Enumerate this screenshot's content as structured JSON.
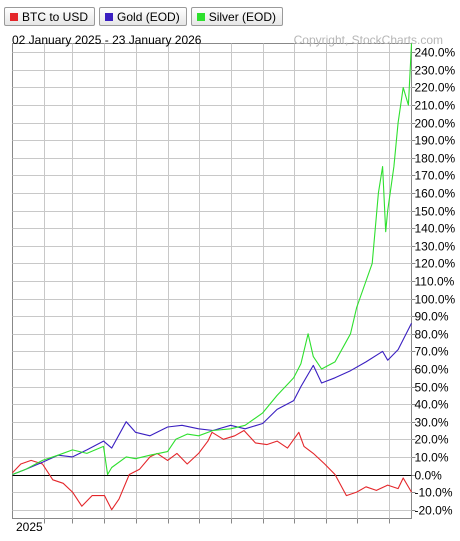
{
  "legend": [
    {
      "label": "BTC to USD",
      "color": "#e4262a"
    },
    {
      "label": "Gold (EOD)",
      "color": "#3a1fc1"
    },
    {
      "label": "Silver (EOD)",
      "color": "#2ee02e"
    }
  ],
  "header": {
    "date_range": "02 January 2025 - 23 January 2026",
    "copyright": "Copyright, StockCharts.com"
  },
  "chart_data": {
    "type": "line",
    "title": "",
    "xlabel": "",
    "ylabel": "",
    "x_start_label": "2025",
    "x_start": "2025-01-02",
    "x_end": "2026-01-23",
    "ylim": [
      -25,
      245
    ],
    "y_ticks": [
      -20,
      -10,
      0,
      10,
      20,
      30,
      40,
      50,
      60,
      70,
      80,
      90,
      100,
      110,
      120,
      130,
      140,
      150,
      160,
      170,
      180,
      190,
      200,
      210,
      220,
      230,
      240
    ],
    "y_tick_suffix": "%",
    "grid": true,
    "zero_line": true,
    "series": [
      {
        "name": "BTC to USD",
        "color": "#e4262a",
        "x": [
          "2025-01-02",
          "2025-01-10",
          "2025-01-20",
          "2025-01-31",
          "2025-02-10",
          "2025-02-20",
          "2025-03-01",
          "2025-03-10",
          "2025-03-20",
          "2025-04-01",
          "2025-04-08",
          "2025-04-15",
          "2025-04-25",
          "2025-05-05",
          "2025-05-15",
          "2025-05-22",
          "2025-06-01",
          "2025-06-10",
          "2025-06-20",
          "2025-07-01",
          "2025-07-10",
          "2025-07-14",
          "2025-07-25",
          "2025-08-05",
          "2025-08-14",
          "2025-08-25",
          "2025-09-05",
          "2025-09-15",
          "2025-09-25",
          "2025-10-06",
          "2025-10-11",
          "2025-10-20",
          "2025-10-31",
          "2025-11-10",
          "2025-11-21",
          "2025-12-01",
          "2025-12-10",
          "2025-12-20",
          "2025-12-31",
          "2026-01-10",
          "2026-01-15",
          "2026-01-23"
        ],
        "values": [
          1,
          6,
          8,
          6,
          -3,
          -5,
          -10,
          -18,
          -12,
          -12,
          -20,
          -14,
          0,
          3,
          10,
          12,
          8,
          12,
          6,
          12,
          19,
          24,
          20,
          22,
          25,
          18,
          17,
          19,
          15,
          24,
          16,
          12,
          6,
          0,
          -12,
          -10,
          -7,
          -9,
          -6,
          -8,
          -2,
          -10
        ]
      },
      {
        "name": "Gold (EOD)",
        "color": "#3a1fc1",
        "x": [
          "2025-01-02",
          "2025-01-15",
          "2025-01-31",
          "2025-02-15",
          "2025-03-01",
          "2025-03-15",
          "2025-03-31",
          "2025-04-08",
          "2025-04-22",
          "2025-05-01",
          "2025-05-15",
          "2025-06-01",
          "2025-06-15",
          "2025-07-01",
          "2025-07-15",
          "2025-08-01",
          "2025-08-15",
          "2025-09-01",
          "2025-09-15",
          "2025-10-01",
          "2025-10-08",
          "2025-10-20",
          "2025-10-28",
          "2025-11-10",
          "2025-11-25",
          "2025-12-10",
          "2025-12-26",
          "2025-12-31",
          "2026-01-10",
          "2026-01-23"
        ],
        "values": [
          0,
          3,
          7,
          11,
          10,
          14,
          19,
          15,
          30,
          24,
          22,
          27,
          28,
          26,
          25,
          28,
          26,
          29,
          37,
          42,
          50,
          62,
          52,
          55,
          59,
          64,
          70,
          65,
          71,
          86
        ]
      },
      {
        "name": "Silver (EOD)",
        "color": "#2ee02e",
        "x": [
          "2025-01-02",
          "2025-01-15",
          "2025-01-31",
          "2025-02-15",
          "2025-03-01",
          "2025-03-15",
          "2025-03-31",
          "2025-04-04",
          "2025-04-08",
          "2025-04-22",
          "2025-05-01",
          "2025-05-15",
          "2025-06-01",
          "2025-06-09",
          "2025-06-20",
          "2025-07-01",
          "2025-07-15",
          "2025-08-01",
          "2025-08-15",
          "2025-09-01",
          "2025-09-15",
          "2025-10-01",
          "2025-10-08",
          "2025-10-15",
          "2025-10-20",
          "2025-10-28",
          "2025-11-10",
          "2025-11-25",
          "2025-12-01",
          "2025-12-10",
          "2025-12-16",
          "2025-12-22",
          "2025-12-26",
          "2025-12-29",
          "2025-12-31",
          "2026-01-06",
          "2026-01-10",
          "2026-01-15",
          "2026-01-20",
          "2026-01-23"
        ],
        "values": [
          0,
          3,
          8,
          11,
          14,
          12,
          16,
          0,
          4,
          10,
          9,
          11,
          13,
          20,
          23,
          22,
          25,
          26,
          28,
          35,
          45,
          55,
          63,
          80,
          67,
          60,
          64,
          80,
          95,
          110,
          120,
          160,
          175,
          138,
          150,
          175,
          200,
          220,
          210,
          245
        ]
      }
    ]
  }
}
